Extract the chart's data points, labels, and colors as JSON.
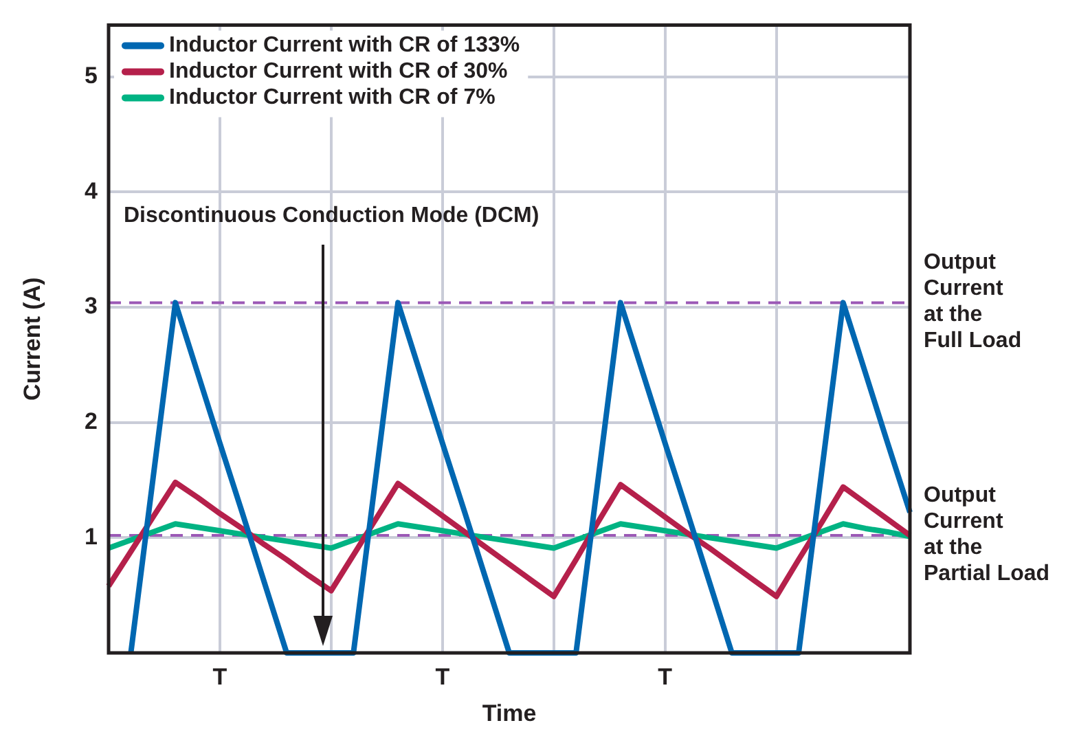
{
  "chart_data": {
    "type": "line",
    "xlabel": "Time",
    "ylabel": "Current (A)",
    "categories": [
      null,
      null,
      null,
      null,
      null,
      "T",
      null,
      null,
      null,
      null,
      null,
      null,
      null,
      null,
      null,
      "T",
      null,
      null,
      null,
      null,
      null,
      null,
      null,
      null,
      null,
      "T",
      null,
      null,
      null,
      null,
      null,
      null,
      null,
      null,
      null,
      null,
      null
    ],
    "ylim": [
      0,
      5.45
    ],
    "yticks": [
      1,
      2,
      3,
      4,
      5
    ],
    "grid": true,
    "legend": "top left",
    "marker": "none",
    "line_style": "solid",
    "series": [
      {
        "name": "Inductor Current with CR of 133%",
        "color": "#0067b1",
        "values": [
          null,
          0,
          1.52,
          3.04,
          2.43,
          1.82,
          1.22,
          0.61,
          0,
          0,
          0,
          0,
          1.52,
          3.04,
          2.43,
          1.82,
          1.22,
          0.61,
          0,
          0,
          0,
          0,
          1.52,
          3.04,
          2.43,
          1.82,
          1.22,
          0.61,
          0,
          0,
          0,
          0,
          1.52,
          3.04,
          2.43,
          1.82,
          1.22
        ]
      },
      {
        "name": "Inductor Current with CR of 30%",
        "color": "#b5204b",
        "values": [
          0.58,
          0.88,
          1.18,
          1.48,
          1.35,
          1.21,
          1.08,
          0.94,
          0.81,
          0.67,
          0.54,
          0.85,
          1.16,
          1.47,
          1.33,
          1.19,
          1.05,
          0.91,
          0.77,
          0.63,
          0.49,
          0.81,
          1.14,
          1.46,
          1.32,
          1.18,
          1.04,
          0.91,
          0.77,
          0.63,
          0.49,
          0.81,
          1.12,
          1.44,
          1.3,
          1.16,
          1.02
        ]
      },
      {
        "name": "Inductor Current with CR of 7%",
        "color": "#00b383",
        "values": [
          0.91,
          0.98,
          1.05,
          1.12,
          1.09,
          1.06,
          1.03,
          1,
          0.97,
          0.94,
          0.91,
          0.98,
          1.05,
          1.12,
          1.09,
          1.06,
          1.03,
          1,
          0.97,
          0.94,
          0.91,
          0.98,
          1.05,
          1.12,
          1.09,
          1.06,
          1.03,
          1,
          0.97,
          0.94,
          0.91,
          0.98,
          1.05,
          1.12,
          1.08,
          1.05,
          1.01
        ]
      }
    ],
    "ref_lines": [
      {
        "axis": "y",
        "value": 3.04,
        "label": "Output\nCurrent\nat the\nFull Load",
        "color": "#9b59b6",
        "line_style": "dashed"
      },
      {
        "axis": "y",
        "value": 1.02,
        "label": "Output\nCurrent\nat the\nPartial Load",
        "color": "#9b59b6",
        "line_style": "dashed"
      }
    ],
    "annotations": [
      "Discontinuous Conduction Mode (DCM)"
    ]
  }
}
